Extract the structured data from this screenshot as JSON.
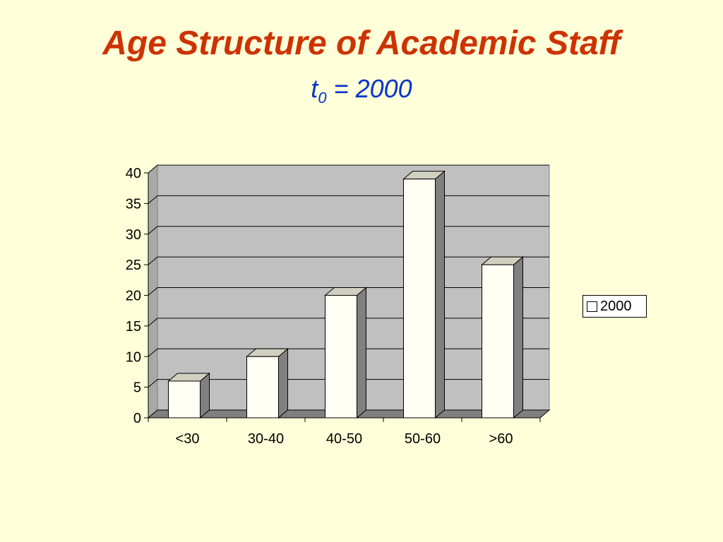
{
  "slide": {
    "title": "Age Structure of Academic Staff",
    "subtitle_var": "t",
    "subtitle_sub": "0",
    "subtitle_rest": " = 2000"
  },
  "colors": {
    "background": "#FFFFD9",
    "title": "#CC3300",
    "subtitle": "#0033CC",
    "plot_area": "#C0C0C0",
    "bar_face": "#FFFFF4",
    "bar_side": "#808080",
    "bar_top": "#D0D0C0",
    "floor": "#808080"
  },
  "chart_data": {
    "type": "bar",
    "style": "3d-column",
    "categories": [
      "<30",
      "30-40",
      "40-50",
      "50-60",
      ">60"
    ],
    "series": [
      {
        "name": "2000",
        "values": [
          6,
          10,
          20,
          39,
          25
        ]
      }
    ],
    "y_ticks": [
      "0",
      "5",
      "10",
      "15",
      "20",
      "25",
      "30",
      "35",
      "40"
    ],
    "ylim": [
      0,
      40
    ],
    "grid": true,
    "legend_position": "right"
  }
}
